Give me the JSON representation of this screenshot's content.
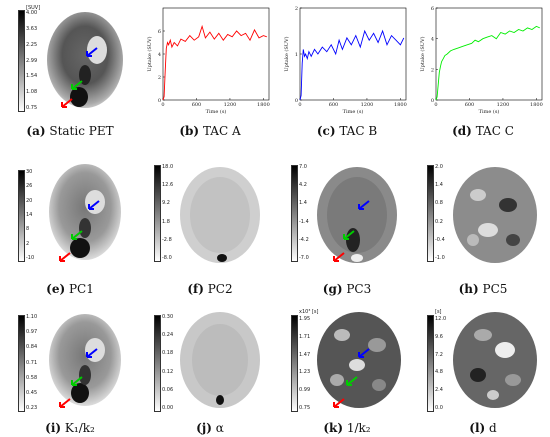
{
  "captions": {
    "a": {
      "tag": "(a)",
      "text": "Static PET"
    },
    "b": {
      "tag": "(b)",
      "text": "TAC A"
    },
    "c": {
      "tag": "(c)",
      "text": "TAC B"
    },
    "d": {
      "tag": "(d)",
      "text": "TAC C"
    },
    "e": {
      "tag": "(e)",
      "text": "PC1"
    },
    "f": {
      "tag": "(f)",
      "text": "PC2"
    },
    "g": {
      "tag": "(g)",
      "text": "PC3"
    },
    "h": {
      "tag": "(h)",
      "text": "PC5"
    },
    "i": {
      "tag": "(i)",
      "text": "K₁/k₂"
    },
    "j": {
      "tag": "(j)",
      "text": "α"
    },
    "k": {
      "tag": "(k)",
      "text": "1/k₂"
    },
    "l": {
      "tag": "(l)",
      "text": "d"
    }
  },
  "colorbars": {
    "a": {
      "unit": "[SUV]",
      "ticks": [
        "4.00",
        "3.63",
        "2.25",
        "2.99",
        "1.54",
        "1.08",
        "0.75"
      ]
    },
    "e": {
      "unit": "",
      "ticks": [
        "30",
        "26",
        "20",
        "14",
        "8",
        "2",
        "-10"
      ]
    },
    "f": {
      "unit": "",
      "ticks": [
        "18.0",
        "12.6",
        "9.2",
        "1.8",
        "-2.8",
        "-8.0"
      ]
    },
    "g": {
      "unit": "",
      "ticks": [
        "7.0",
        "4.2",
        "1.4",
        "-1.4",
        "-4.2",
        "-7.0"
      ]
    },
    "h": {
      "unit": "",
      "ticks": [
        "2.0",
        "1.4",
        "0.8",
        "0.2",
        "-0.4",
        "-1.0"
      ]
    },
    "i": {
      "unit": "",
      "ticks": [
        "1.10",
        "0.97",
        "0.84",
        "0.71",
        "0.58",
        "0.45",
        "0.23"
      ]
    },
    "j": {
      "unit": "",
      "ticks": [
        "0.30",
        "0.24",
        "0.18",
        "0.12",
        "0.06",
        "0.00"
      ]
    },
    "k": {
      "unit": "x10³ [s]",
      "ticks": [
        "1.95",
        "1.71",
        "1.47",
        "1.23",
        "0.99",
        "0.75"
      ]
    },
    "l": {
      "unit": "[s]",
      "ticks": [
        "12.0",
        "9.6",
        "7.2",
        "4.8",
        "2.4",
        "0.0"
      ]
    }
  },
  "chart_data": [
    {
      "type": "line",
      "id": "tac-a",
      "color": "#ff0000",
      "xlabel": "Time (s)",
      "ylabel": "Uptake (SUV)",
      "xlim": [
        0,
        1900
      ],
      "ylim": [
        0,
        8
      ],
      "xticks": [
        0,
        600,
        1200,
        1800
      ],
      "yticks": [
        0,
        2,
        4,
        6
      ],
      "x": [
        0,
        20,
        40,
        60,
        80,
        100,
        130,
        160,
        200,
        260,
        320,
        400,
        480,
        560,
        640,
        700,
        760,
        840,
        920,
        1000,
        1080,
        1160,
        1240,
        1320,
        1400,
        1480,
        1560,
        1640,
        1720,
        1800,
        1860
      ],
      "y": [
        0,
        0.3,
        2.5,
        4.5,
        5.0,
        4.8,
        5.2,
        4.6,
        5.0,
        4.7,
        5.3,
        5.1,
        5.6,
        5.2,
        5.5,
        6.4,
        5.4,
        5.9,
        5.3,
        5.8,
        5.2,
        5.7,
        5.5,
        6.0,
        5.6,
        5.8,
        5.2,
        6.1,
        5.4,
        5.6,
        5.5
      ]
    },
    {
      "type": "line",
      "id": "tac-b",
      "color": "#0000ff",
      "xlabel": "Time (s)",
      "ylabel": "Uptake (SUV)",
      "xlim": [
        0,
        1900
      ],
      "ylim": [
        0,
        2
      ],
      "xticks": [
        0,
        600,
        1200,
        1800
      ],
      "yticks": [
        0,
        1,
        2
      ],
      "x": [
        0,
        20,
        40,
        60,
        80,
        100,
        130,
        160,
        200,
        260,
        320,
        400,
        480,
        560,
        640,
        700,
        760,
        840,
        920,
        1000,
        1080,
        1160,
        1240,
        1320,
        1400,
        1480,
        1560,
        1640,
        1720,
        1800,
        1860
      ],
      "y": [
        0,
        0.1,
        0.8,
        1.1,
        0.95,
        1.0,
        0.9,
        1.05,
        0.95,
        1.1,
        1.0,
        1.15,
        1.05,
        1.2,
        1.0,
        1.3,
        1.1,
        1.35,
        1.2,
        1.4,
        1.15,
        1.5,
        1.3,
        1.45,
        1.25,
        1.5,
        1.2,
        1.4,
        1.3,
        1.2,
        1.35
      ]
    },
    {
      "type": "line",
      "id": "tac-c",
      "color": "#00ee00",
      "xlabel": "Time (s)",
      "ylabel": "Uptake (SUV)",
      "xlim": [
        0,
        1900
      ],
      "ylim": [
        0,
        6
      ],
      "xticks": [
        0,
        600,
        1200,
        1800
      ],
      "yticks": [
        0,
        2,
        4,
        6
      ],
      "x": [
        0,
        20,
        40,
        60,
        80,
        100,
        130,
        160,
        200,
        260,
        320,
        400,
        480,
        560,
        640,
        700,
        760,
        840,
        920,
        1000,
        1080,
        1160,
        1240,
        1320,
        1400,
        1480,
        1560,
        1640,
        1720,
        1800,
        1860
      ],
      "y": [
        0,
        0.2,
        1.0,
        1.8,
        2.2,
        2.5,
        2.7,
        2.9,
        3.0,
        3.2,
        3.3,
        3.4,
        3.5,
        3.6,
        3.7,
        3.9,
        3.8,
        4.0,
        4.1,
        4.2,
        4.0,
        4.4,
        4.3,
        4.5,
        4.4,
        4.6,
        4.5,
        4.7,
        4.6,
        4.8,
        4.7
      ]
    }
  ]
}
